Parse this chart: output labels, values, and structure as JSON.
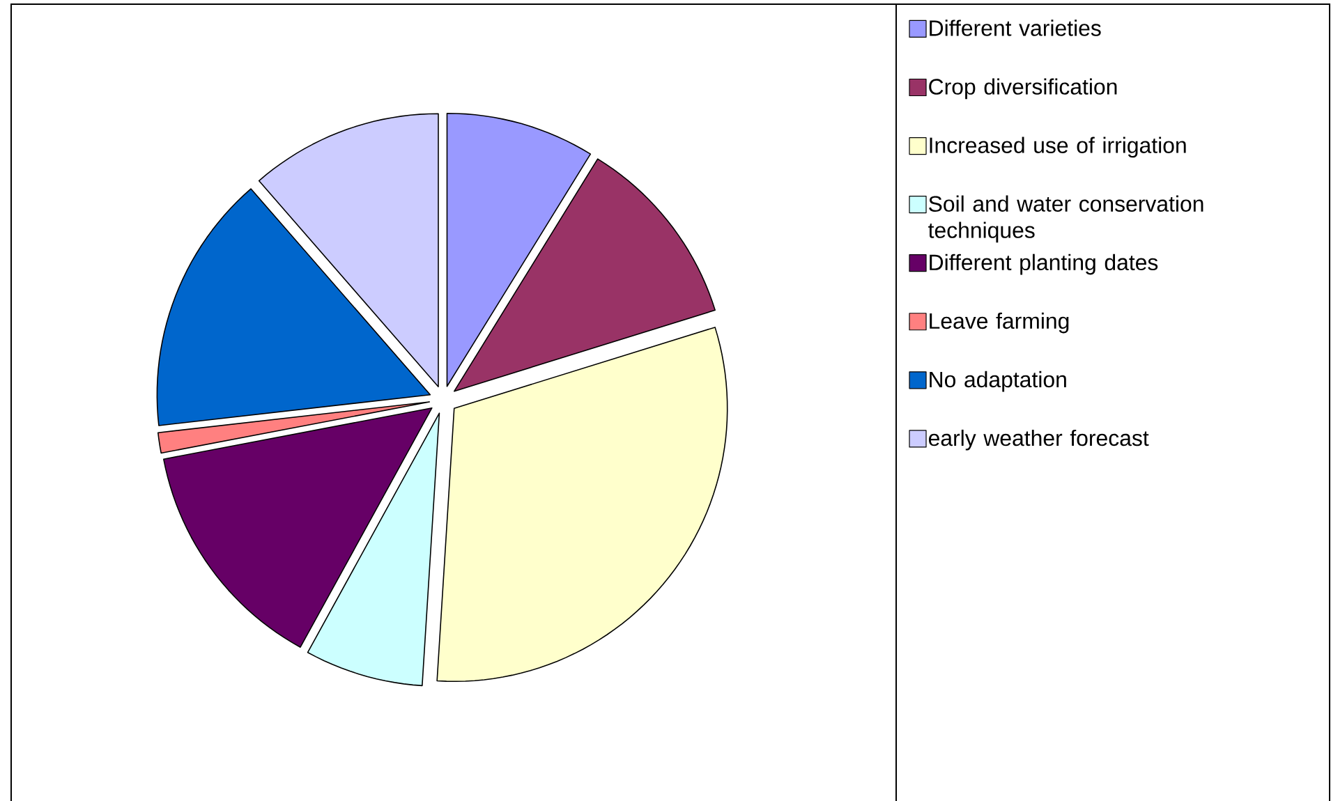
{
  "chart_data": {
    "type": "pie",
    "categories": [
      "Different varieties",
      "Crop diversification",
      "Increased use of irrigation",
      "Soil and water conservation techniques",
      "Different planting dates",
      "Leave farming",
      "No adaptation",
      "early weather forecast"
    ],
    "values": [
      8.8,
      11.4,
      30.8,
      7.0,
      14.0,
      1.2,
      15.4,
      11.4
    ],
    "colors": [
      "#9999ff",
      "#993366",
      "#ffffcc",
      "#ccffff",
      "#660066",
      "#ff8080",
      "#0066cc",
      "#ccccff"
    ],
    "legend": "right"
  }
}
